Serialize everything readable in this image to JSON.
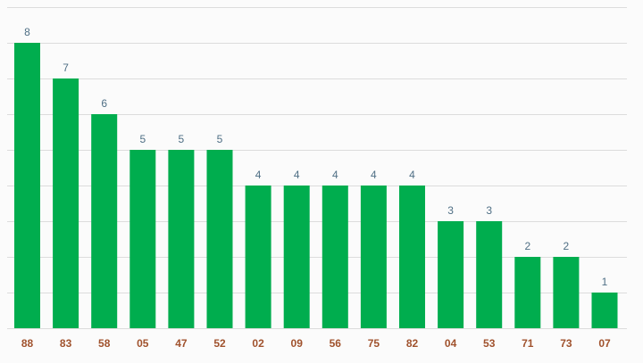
{
  "chart_data": {
    "type": "bar",
    "categories": [
      "88",
      "83",
      "58",
      "05",
      "47",
      "52",
      "02",
      "09",
      "56",
      "75",
      "82",
      "04",
      "53",
      "71",
      "73",
      "07"
    ],
    "values": [
      8,
      7,
      6,
      5,
      5,
      5,
      4,
      4,
      4,
      4,
      4,
      3,
      3,
      2,
      2,
      1
    ],
    "title": "",
    "xlabel": "",
    "ylabel": "",
    "ylim": [
      0,
      9
    ],
    "grid": true,
    "data_labels": true,
    "bar_color": "#00ad4e",
    "category_label_color": "#a0522d",
    "value_label_color": "#4f6f85",
    "grid_color": "#dcdcdc"
  }
}
